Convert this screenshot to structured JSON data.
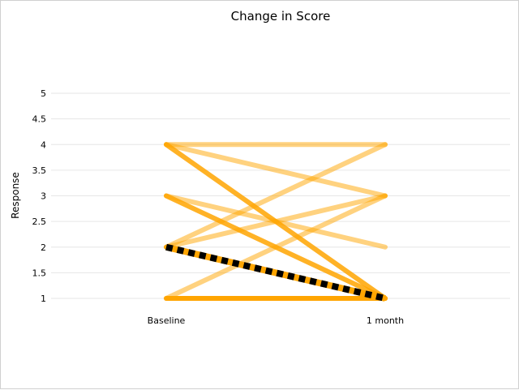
{
  "chart_data": {
    "type": "line",
    "title": "Change in Score",
    "xlabel": "",
    "ylabel": "Response",
    "categories": [
      "Baseline",
      "1 month"
    ],
    "ylim": [
      1,
      5
    ],
    "yticks": [
      1,
      1.5,
      2,
      2.5,
      3,
      3.5,
      4,
      4.5,
      5
    ],
    "ytick_labels": [
      "1",
      "1.5",
      "2",
      "2.5",
      "3",
      "3.5",
      "4",
      "4.5",
      "5"
    ],
    "grid": true,
    "legend": "none",
    "colors": {
      "line": "#ffa500",
      "mean_dash": "#000000",
      "grid": "#e6e6e6"
    },
    "series": [
      {
        "values": [
          4,
          4
        ],
        "weight": 1
      },
      {
        "values": [
          4,
          3
        ],
        "weight": 1
      },
      {
        "values": [
          3,
          2
        ],
        "weight": 1
      },
      {
        "values": [
          2,
          4
        ],
        "weight": 1
      },
      {
        "values": [
          2,
          3
        ],
        "weight": 1
      },
      {
        "values": [
          1,
          3
        ],
        "weight": 1
      },
      {
        "values": [
          4,
          1
        ],
        "weight": 2
      },
      {
        "values": [
          3,
          1
        ],
        "weight": 2
      },
      {
        "values": [
          2,
          1
        ],
        "weight": 2
      },
      {
        "values": [
          1,
          1
        ],
        "weight": 3
      }
    ],
    "mean_line": {
      "values": [
        2,
        1
      ]
    }
  }
}
